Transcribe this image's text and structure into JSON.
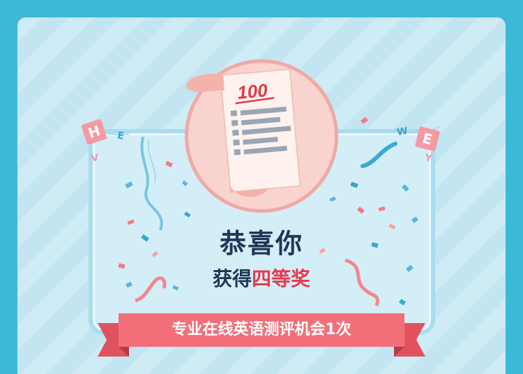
{
  "modal": {
    "paper_score": "100",
    "title": "恭喜你",
    "prize_prefix": "获得",
    "prize_name": "四等奖",
    "reward_text": "专业在线英语测评机会1次"
  },
  "bunting": {
    "left": [
      "H",
      "E",
      "V"
    ],
    "right": [
      "W",
      "E",
      "Y"
    ]
  },
  "icons": {
    "illustration": "score-paper-scroll-icon",
    "decoration": "confetti"
  },
  "colors": {
    "background": "#3cb9d9",
    "title": "#1f3657",
    "prize": "#e8394b",
    "ribbon": "#f26f79",
    "ribbon_dark": "#e1525f"
  }
}
